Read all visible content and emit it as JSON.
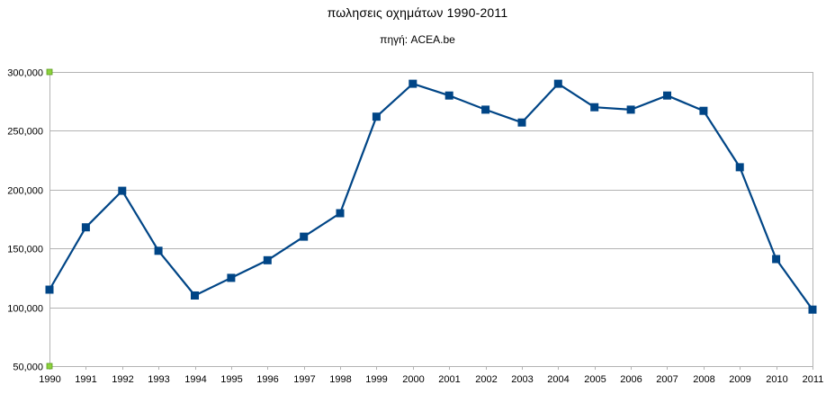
{
  "chart_data": {
    "type": "line",
    "title": "πωλησεις οχημάτων 1990-2011",
    "subtitle": "πηγή: ACEA.be",
    "xlabel": "",
    "ylabel": "",
    "categories": [
      "1990",
      "1991",
      "1992",
      "1993",
      "1994",
      "1995",
      "1996",
      "1997",
      "1998",
      "1999",
      "2000",
      "2001",
      "2002",
      "2003",
      "2004",
      "2005",
      "2006",
      "2007",
      "2008",
      "2009",
      "2010",
      "2011"
    ],
    "series": [
      {
        "values": [
          115000,
          168000,
          199000,
          148000,
          110000,
          125000,
          140000,
          160000,
          180000,
          262000,
          290000,
          280000,
          268000,
          257000,
          290000,
          270000,
          268000,
          280000,
          267000,
          219000,
          141000,
          98000
        ]
      }
    ],
    "ylim": [
      50000,
      300000
    ],
    "yticks": [
      50000,
      100000,
      150000,
      200000,
      250000,
      300000
    ],
    "ytick_labels": [
      "50,000",
      "100,000",
      "150,000",
      "200,000",
      "250,000",
      "300,000"
    ],
    "grid": true,
    "legend": "none",
    "line_color": "#004586",
    "grid_color": "#b3b3b3",
    "axis_color": "#b3b3b3",
    "handle_color": "#8cd23c"
  }
}
